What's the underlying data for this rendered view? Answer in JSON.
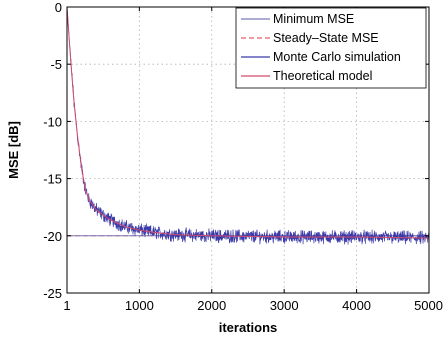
{
  "chart_data": {
    "type": "line",
    "title": "",
    "xlabel": "iterations",
    "ylabel": "MSE [dB]",
    "xlim": [
      1,
      5000
    ],
    "ylim": [
      -25,
      0
    ],
    "xticks": [
      1,
      1000,
      2000,
      3000,
      4000,
      5000
    ],
    "xtick_labels": [
      "1",
      "1000",
      "2000",
      "3000",
      "4000",
      "5000"
    ],
    "yticks": [
      0,
      -5,
      -10,
      -15,
      -20,
      -25
    ],
    "ytick_labels": [
      "0",
      "-5",
      "-10",
      "-15",
      "-20",
      "-25"
    ],
    "grid": true,
    "legend_position": "top-right",
    "series": [
      {
        "name": "Minimum MSE",
        "style": "solid",
        "color": "#7a7ab8",
        "x": [
          1,
          5000
        ],
        "y": [
          -20,
          -20
        ]
      },
      {
        "name": "Steady–State MSE",
        "style": "dashed",
        "color": "#e06060",
        "x": [
          1,
          5000
        ],
        "y": [
          -20,
          -20
        ]
      },
      {
        "name": "Monte Carlo simulation",
        "style": "solid",
        "color": "#3a3aa8",
        "x": [
          1,
          50,
          100,
          150,
          200,
          250,
          300,
          400,
          500,
          600,
          700,
          800,
          1000,
          1200,
          1500,
          2000,
          2500,
          3000,
          3500,
          4000,
          4500,
          5000
        ],
        "y": [
          0,
          -4.5,
          -8.5,
          -11.5,
          -14.0,
          -15.8,
          -16.8,
          -17.7,
          -18.2,
          -18.6,
          -18.9,
          -19.2,
          -19.5,
          -19.7,
          -19.9,
          -20.0,
          -20.05,
          -20.1,
          -20.1,
          -20.1,
          -20.15,
          -20.2
        ]
      },
      {
        "name": "Theoretical model",
        "style": "solid",
        "color": "#d24b6e",
        "x": [
          1,
          50,
          100,
          150,
          200,
          250,
          300,
          400,
          500,
          600,
          700,
          800,
          1000,
          1200,
          1500,
          2000,
          2500,
          3000,
          3500,
          4000,
          4500,
          5000
        ],
        "y": [
          0,
          -4.5,
          -8.5,
          -11.5,
          -14.0,
          -15.8,
          -16.8,
          -17.7,
          -18.2,
          -18.6,
          -18.9,
          -19.2,
          -19.5,
          -19.7,
          -19.9,
          -20.0,
          -20.05,
          -20.1,
          -20.1,
          -20.1,
          -20.15,
          -20.2
        ]
      }
    ]
  }
}
